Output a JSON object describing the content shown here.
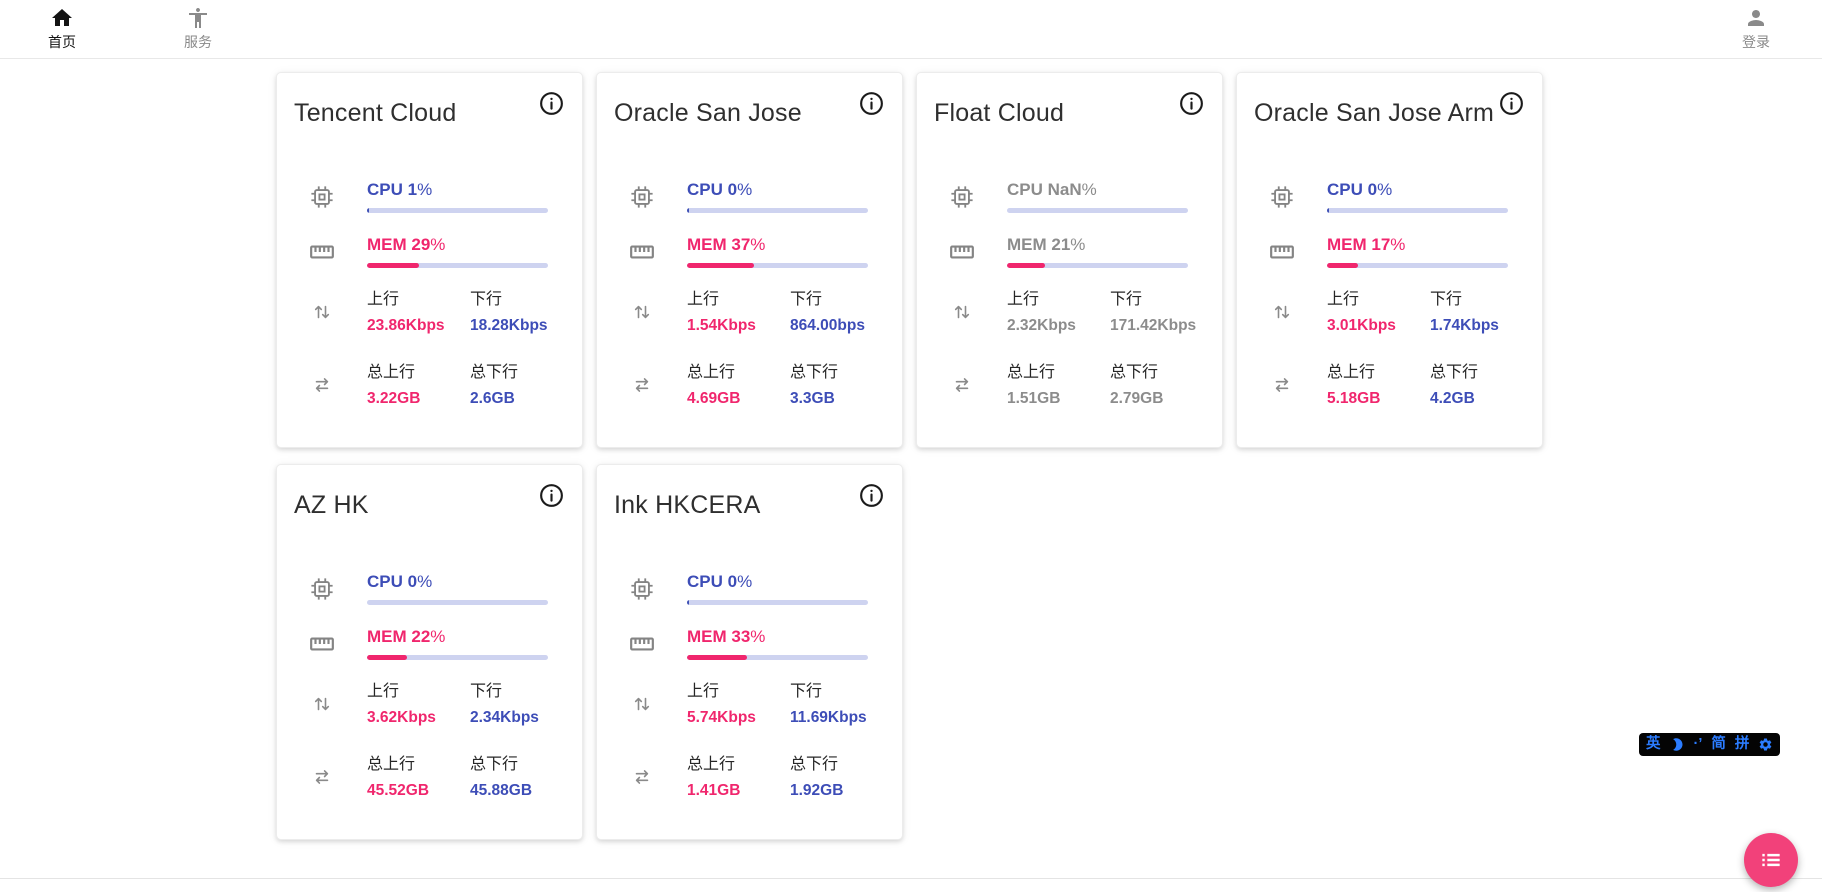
{
  "nav": {
    "home": "首页",
    "services": "服务",
    "login": "登录"
  },
  "labels": {
    "up": "上行",
    "down": "下行",
    "total_up": "总上行",
    "total_down": "总下行",
    "percent": "%"
  },
  "colors": {
    "cpu_blue": "#3d4db7",
    "mem_pink": "#f0266d",
    "bar_track": "#ced3f0",
    "offline_gray": "#8c8c8c",
    "fab_pink": "#f2417a",
    "ime_blue": "#2b7cff"
  },
  "servers": [
    {
      "name": "Tencent Cloud",
      "cpu": "CPU 1",
      "cpu_pct": 1,
      "mem": "MEM 29",
      "mem_pct": 29,
      "up": "23.86Kbps",
      "down": "18.28Kbps",
      "total_up": "3.22GB",
      "total_down": "2.6GB",
      "offline": false
    },
    {
      "name": "Oracle San Jose",
      "cpu": "CPU 0",
      "cpu_pct": 1,
      "mem": "MEM 37",
      "mem_pct": 37,
      "up": "1.54Kbps",
      "down": "864.00bps",
      "total_up": "4.69GB",
      "total_down": "3.3GB",
      "offline": false
    },
    {
      "name": "Float Cloud",
      "cpu": "CPU NaN",
      "cpu_pct": 0,
      "mem": "MEM 21",
      "mem_pct": 21,
      "up": "2.32Kbps",
      "down": "171.42Kbps",
      "total_up": "1.51GB",
      "total_down": "2.79GB",
      "offline": true
    },
    {
      "name": "Oracle San Jose Arm",
      "cpu": "CPU 0",
      "cpu_pct": 1,
      "mem": "MEM 17",
      "mem_pct": 17,
      "up": "3.01Kbps",
      "down": "1.74Kbps",
      "total_up": "5.18GB",
      "total_down": "4.2GB",
      "offline": false
    },
    {
      "name": "AZ HK",
      "cpu": "CPU 0",
      "cpu_pct": 0,
      "mem": "MEM 22",
      "mem_pct": 22,
      "up": "3.62Kbps",
      "down": "2.34Kbps",
      "total_up": "45.52GB",
      "total_down": "45.88GB",
      "offline": false
    },
    {
      "name": "Ink HKCERA",
      "cpu": "CPU 0",
      "cpu_pct": 1,
      "mem": "MEM 33",
      "mem_pct": 33,
      "up": "5.74Kbps",
      "down": "11.69Kbps",
      "total_up": "1.41GB",
      "total_down": "1.92GB",
      "offline": false
    }
  ],
  "ime": {
    "english": "英",
    "punctuation": "·’",
    "simplified": "简",
    "pinyin": "拼"
  }
}
